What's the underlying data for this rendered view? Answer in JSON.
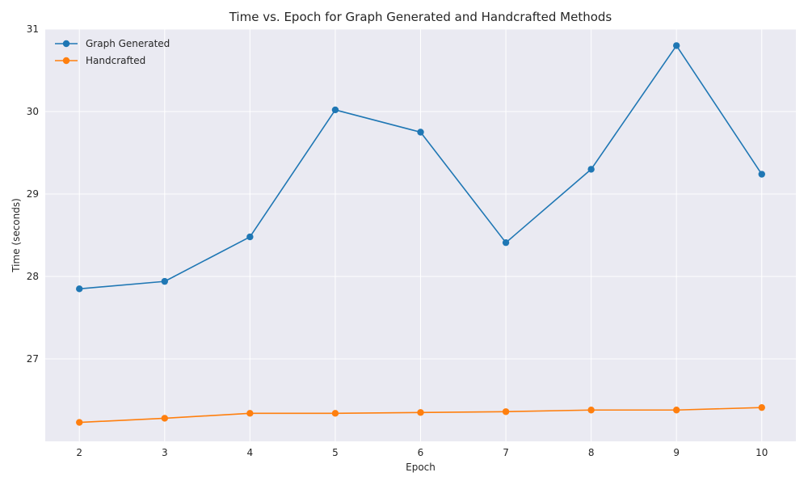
{
  "chart_data": {
    "type": "line",
    "title": "Time vs. Epoch for Graph Generated and Handcrafted Methods",
    "xlabel": "Epoch",
    "ylabel": "Time (seconds)",
    "x": [
      2,
      3,
      4,
      5,
      6,
      7,
      8,
      9,
      10
    ],
    "xlim": [
      1.6,
      10.4
    ],
    "ylim": [
      26.0,
      31.0
    ],
    "xticks": [
      "2",
      "3",
      "4",
      "5",
      "6",
      "7",
      "8",
      "9",
      "10"
    ],
    "yticks": [
      "27",
      "28",
      "29",
      "30",
      "31"
    ],
    "grid": true,
    "legend_position": "top-left",
    "series": [
      {
        "name": "Graph Generated",
        "color": "#1f77b4",
        "values": [
          27.85,
          27.94,
          28.48,
          30.02,
          29.75,
          28.41,
          29.3,
          30.8,
          29.24
        ]
      },
      {
        "name": "Handcrafted",
        "color": "#ff7f0e",
        "values": [
          26.23,
          26.28,
          26.34,
          26.34,
          26.35,
          26.36,
          26.38,
          26.38,
          26.41
        ]
      }
    ]
  }
}
